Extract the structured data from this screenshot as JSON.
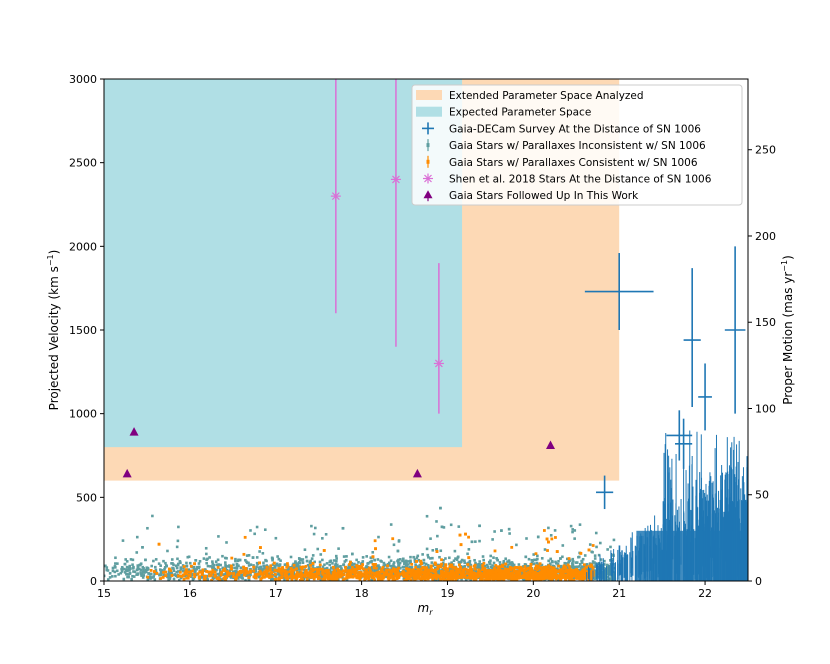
{
  "chart_data": {
    "type": "scatter",
    "xlabel": "m",
    "xlabel_sub": "r",
    "ylabel_left": "Projected Velocity (km s",
    "ylabel_left_unit": "−1",
    "ylabel_left_close": ")",
    "ylabel_right": "Proper Motion (mas yr",
    "ylabel_right_unit": "−1",
    "ylabel_right_close": ")",
    "xlim": [
      15,
      22.5
    ],
    "ylim_left": [
      0,
      3000
    ],
    "ylim_right": [
      0,
      291
    ],
    "x_ticks": [
      15,
      16,
      17,
      18,
      19,
      20,
      21,
      22
    ],
    "y_ticks_left": [
      0,
      500,
      1000,
      1500,
      2000,
      2500,
      3000
    ],
    "y_ticks_right": [
      0,
      50,
      100,
      150,
      200,
      250
    ],
    "regions": [
      {
        "name": "Extended Parameter Space Analyzed",
        "x": [
          15,
          21
        ],
        "y": [
          600,
          3000
        ],
        "color": "#fdd9b5"
      },
      {
        "name": "Expected Parameter Space",
        "x": [
          15,
          19.17
        ],
        "y": [
          800,
          3000
        ],
        "color": "#b0dfe5"
      }
    ],
    "series": [
      {
        "name": "Gaia-DECam Survey At the Distance of SN 1006",
        "color": "#1f77b4",
        "marker": "errorbar",
        "points": [
          {
            "x": 21.0,
            "y": 1730,
            "xerr": 0.4,
            "yerr_lo": 230,
            "yerr_hi": 230
          },
          {
            "x": 20.83,
            "y": 530,
            "xerr": 0.1,
            "yerr_lo": 100,
            "yerr_hi": 100
          },
          {
            "x": 21.85,
            "y": 1440,
            "xerr": 0.1,
            "yerr_lo": 400,
            "yerr_hi": 430
          },
          {
            "x": 22.0,
            "y": 1100,
            "xerr": 0.08,
            "yerr_lo": 200,
            "yerr_hi": 200
          },
          {
            "x": 22.35,
            "y": 1500,
            "xerr": 0.12,
            "yerr_lo": 500,
            "yerr_hi": 500
          },
          {
            "x": 21.7,
            "y": 870,
            "xerr": 0.15,
            "yerr_lo": 150,
            "yerr_hi": 150
          },
          {
            "x": 21.75,
            "y": 820,
            "xerr": 0.1,
            "yerr_lo": 150,
            "yerr_hi": 150
          }
        ]
      },
      {
        "name": "Gaia Stars w/ Parallaxes Inconsistent w/ SN 1006",
        "color": "#5f9ea0",
        "marker": "errorbar-thin"
      },
      {
        "name": "Gaia Stars w/ Parallaxes Consistent w/ SN 1006",
        "color": "#ff8c00",
        "marker": "errorbar-thin"
      },
      {
        "name": "Shen et al. 2018 Stars At the Distance of SN 1006",
        "color": "#da70d6",
        "marker": "asterisk",
        "points": [
          {
            "x": 17.7,
            "y": 2300,
            "yerr_lo": 700,
            "yerr_hi": 700
          },
          {
            "x": 18.4,
            "y": 2400,
            "yerr_lo": 1000,
            "yerr_hi": 600
          },
          {
            "x": 18.9,
            "y": 1300,
            "yerr_lo": 300,
            "yerr_hi": 600
          }
        ]
      },
      {
        "name": "Gaia Stars Followed Up In This Work",
        "color": "#800080",
        "marker": "triangle",
        "points": [
          {
            "x": 15.27,
            "y": 640
          },
          {
            "x": 15.35,
            "y": 890
          },
          {
            "x": 18.65,
            "y": 640
          },
          {
            "x": 20.2,
            "y": 810
          }
        ]
      }
    ],
    "legend_position": "top-right"
  }
}
